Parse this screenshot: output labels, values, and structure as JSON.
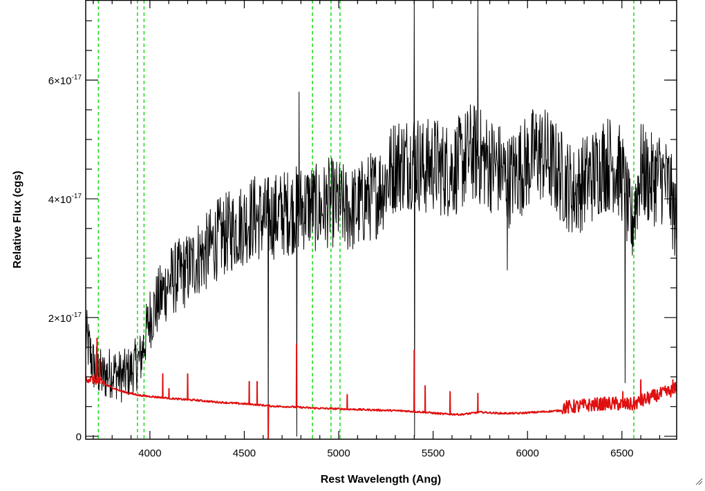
{
  "chart_data": {
    "type": "line",
    "title": "",
    "xlabel": "Rest Wavelength (Ang)",
    "ylabel": "Relative Flux (cgs)",
    "xlim": [
      3660,
      6790
    ],
    "ylim": [
      -5e-19,
      7.35e-17
    ],
    "x_ticks": [
      {
        "value": 4000,
        "label": "4000"
      },
      {
        "value": 4500,
        "label": "4500"
      },
      {
        "value": 5000,
        "label": "5000"
      },
      {
        "value": 5500,
        "label": "5500"
      },
      {
        "value": 6000,
        "label": "6000"
      },
      {
        "value": 6500,
        "label": "6500"
      }
    ],
    "y_ticks": [
      {
        "value": 0,
        "mantissa": "0",
        "exponent": ""
      },
      {
        "value": 2e-17,
        "mantissa": "2×10",
        "exponent": "-17"
      },
      {
        "value": 4e-17,
        "mantissa": "4×10",
        "exponent": "-17"
      },
      {
        "value": 6e-17,
        "mantissa": "6×10",
        "exponent": "-17"
      }
    ],
    "grid": false,
    "legend": "none",
    "colors": {
      "spectrum": "#000000",
      "model": "#e01010",
      "line_markers": "#22dd22"
    },
    "vertical_markers": [
      3727,
      3934,
      3969,
      4861,
      4959,
      5007,
      6563
    ],
    "series": [
      {
        "role": "observed-spectrum",
        "points": [
          [
            3660,
            1.7e-17
          ],
          [
            3700,
            1.2e-17
          ],
          [
            3750,
            1e-17
          ],
          [
            3800,
            1.1e-17
          ],
          [
            3850,
            1e-17
          ],
          [
            3900,
            1.1e-17
          ],
          [
            3950,
            1.3e-17
          ],
          [
            4000,
            2e-17
          ],
          [
            4050,
            2.3e-17
          ],
          [
            4100,
            2.6e-17
          ],
          [
            4150,
            2.7e-17
          ],
          [
            4200,
            2.8e-17
          ],
          [
            4250,
            3e-17
          ],
          [
            4300,
            3.1e-17
          ],
          [
            4350,
            3.3e-17
          ],
          [
            4400,
            3.4e-17
          ],
          [
            4450,
            3.5e-17
          ],
          [
            4500,
            3.6e-17
          ],
          [
            4550,
            3.7e-17
          ],
          [
            4600,
            3.65e-17
          ],
          [
            4650,
            3.7e-17
          ],
          [
            4700,
            3.75e-17
          ],
          [
            4750,
            3.8e-17
          ],
          [
            4800,
            3.85e-17
          ],
          [
            4850,
            3.9e-17
          ],
          [
            4900,
            3.8e-17
          ],
          [
            4950,
            3.95e-17
          ],
          [
            5000,
            3.9e-17
          ],
          [
            5050,
            3.8e-17
          ],
          [
            5100,
            3.85e-17
          ],
          [
            5150,
            4e-17
          ],
          [
            5200,
            4.1e-17
          ],
          [
            5250,
            4.3e-17
          ],
          [
            5300,
            4.6e-17
          ],
          [
            5350,
            4.6e-17
          ],
          [
            5400,
            4.7e-17
          ],
          [
            5450,
            4.5e-17
          ],
          [
            5500,
            4.6e-17
          ],
          [
            5550,
            4.5e-17
          ],
          [
            5600,
            4.5e-17
          ],
          [
            5650,
            4.6e-17
          ],
          [
            5700,
            4.8e-17
          ],
          [
            5750,
            4.7e-17
          ],
          [
            5800,
            4.6e-17
          ],
          [
            5850,
            4.5e-17
          ],
          [
            5900,
            4.3e-17
          ],
          [
            5950,
            4.5e-17
          ],
          [
            6000,
            4.6e-17
          ],
          [
            6050,
            4.8e-17
          ],
          [
            6100,
            4.7e-17
          ],
          [
            6150,
            4.5e-17
          ],
          [
            6200,
            4.3e-17
          ],
          [
            6250,
            4.1e-17
          ],
          [
            6300,
            4.3e-17
          ],
          [
            6350,
            4.4e-17
          ],
          [
            6400,
            4.6e-17
          ],
          [
            6450,
            4.6e-17
          ],
          [
            6500,
            4.4e-17
          ],
          [
            6550,
            3.5e-17
          ],
          [
            6600,
            4.5e-17
          ],
          [
            6650,
            4.3e-17
          ],
          [
            6700,
            4.4e-17
          ],
          [
            6750,
            4.2e-17
          ],
          [
            6790,
            3.5e-17
          ]
        ],
        "features": [
          {
            "x": 4627,
            "y": 0.0
          },
          {
            "x": 4778,
            "y": 0.0
          },
          {
            "x": 4790,
            "y": 5.8e-17
          },
          {
            "x": 5400,
            "y": 7.4e-17
          },
          {
            "x": 5402,
            "y": 0.0
          },
          {
            "x": 5737,
            "y": 7.4e-17
          },
          {
            "x": 5893,
            "y": 2.8e-17
          },
          {
            "x": 6517,
            "y": 9e-18
          }
        ]
      },
      {
        "role": "model-spectrum",
        "points": [
          [
            3660,
            9.5e-18
          ],
          [
            3750,
            8.8e-18
          ],
          [
            3850,
            7.5e-18
          ],
          [
            3950,
            6.8e-18
          ],
          [
            4050,
            6.5e-18
          ],
          [
            4150,
            6.2e-18
          ],
          [
            4250,
            6e-18
          ],
          [
            4350,
            5.7e-18
          ],
          [
            4450,
            5.5e-18
          ],
          [
            4550,
            5.3e-18
          ],
          [
            4650,
            5e-18
          ],
          [
            4750,
            4.9e-18
          ],
          [
            4850,
            4.7e-18
          ],
          [
            4950,
            4.6e-18
          ],
          [
            5050,
            4.5e-18
          ],
          [
            5150,
            4.4e-18
          ],
          [
            5250,
            4.3e-18
          ],
          [
            5350,
            4.2e-18
          ],
          [
            5450,
            4e-18
          ],
          [
            5550,
            3.7e-18
          ],
          [
            5650,
            3.6e-18
          ],
          [
            5750,
            4e-18
          ],
          [
            5850,
            3.8e-18
          ],
          [
            5950,
            3.8e-18
          ],
          [
            6050,
            4e-18
          ],
          [
            6150,
            4.2e-18
          ],
          [
            6250,
            4.5e-18
          ],
          [
            6350,
            4.8e-18
          ],
          [
            6450,
            5e-18
          ],
          [
            6550,
            4.8e-18
          ],
          [
            6650,
            6e-18
          ],
          [
            6750,
            7e-18
          ],
          [
            6790,
            7.5e-18
          ]
        ],
        "features": [
          {
            "x": 3720,
            "y": 1.65e-17
          },
          {
            "x": 3734,
            "y": 1.3e-17
          },
          {
            "x": 4068,
            "y": 1.05e-17
          },
          {
            "x": 4101,
            "y": 8e-18
          },
          {
            "x": 4200,
            "y": 1.05e-17
          },
          {
            "x": 4526,
            "y": 9.2e-18
          },
          {
            "x": 4568,
            "y": 9.2e-18
          },
          {
            "x": 4627,
            "y": -5e-19
          },
          {
            "x": 4777,
            "y": 1.55e-17
          },
          {
            "x": 5045,
            "y": 7e-18
          },
          {
            "x": 5400,
            "y": 1.45e-17
          },
          {
            "x": 5458,
            "y": 8.5e-18
          },
          {
            "x": 5590,
            "y": 7.5e-18
          },
          {
            "x": 5737,
            "y": 7.2e-18
          },
          {
            "x": 6505,
            "y": 7.5e-18
          },
          {
            "x": 6600,
            "y": 9.5e-18
          },
          {
            "x": 6770,
            "y": 9.5e-18
          }
        ]
      }
    ]
  }
}
